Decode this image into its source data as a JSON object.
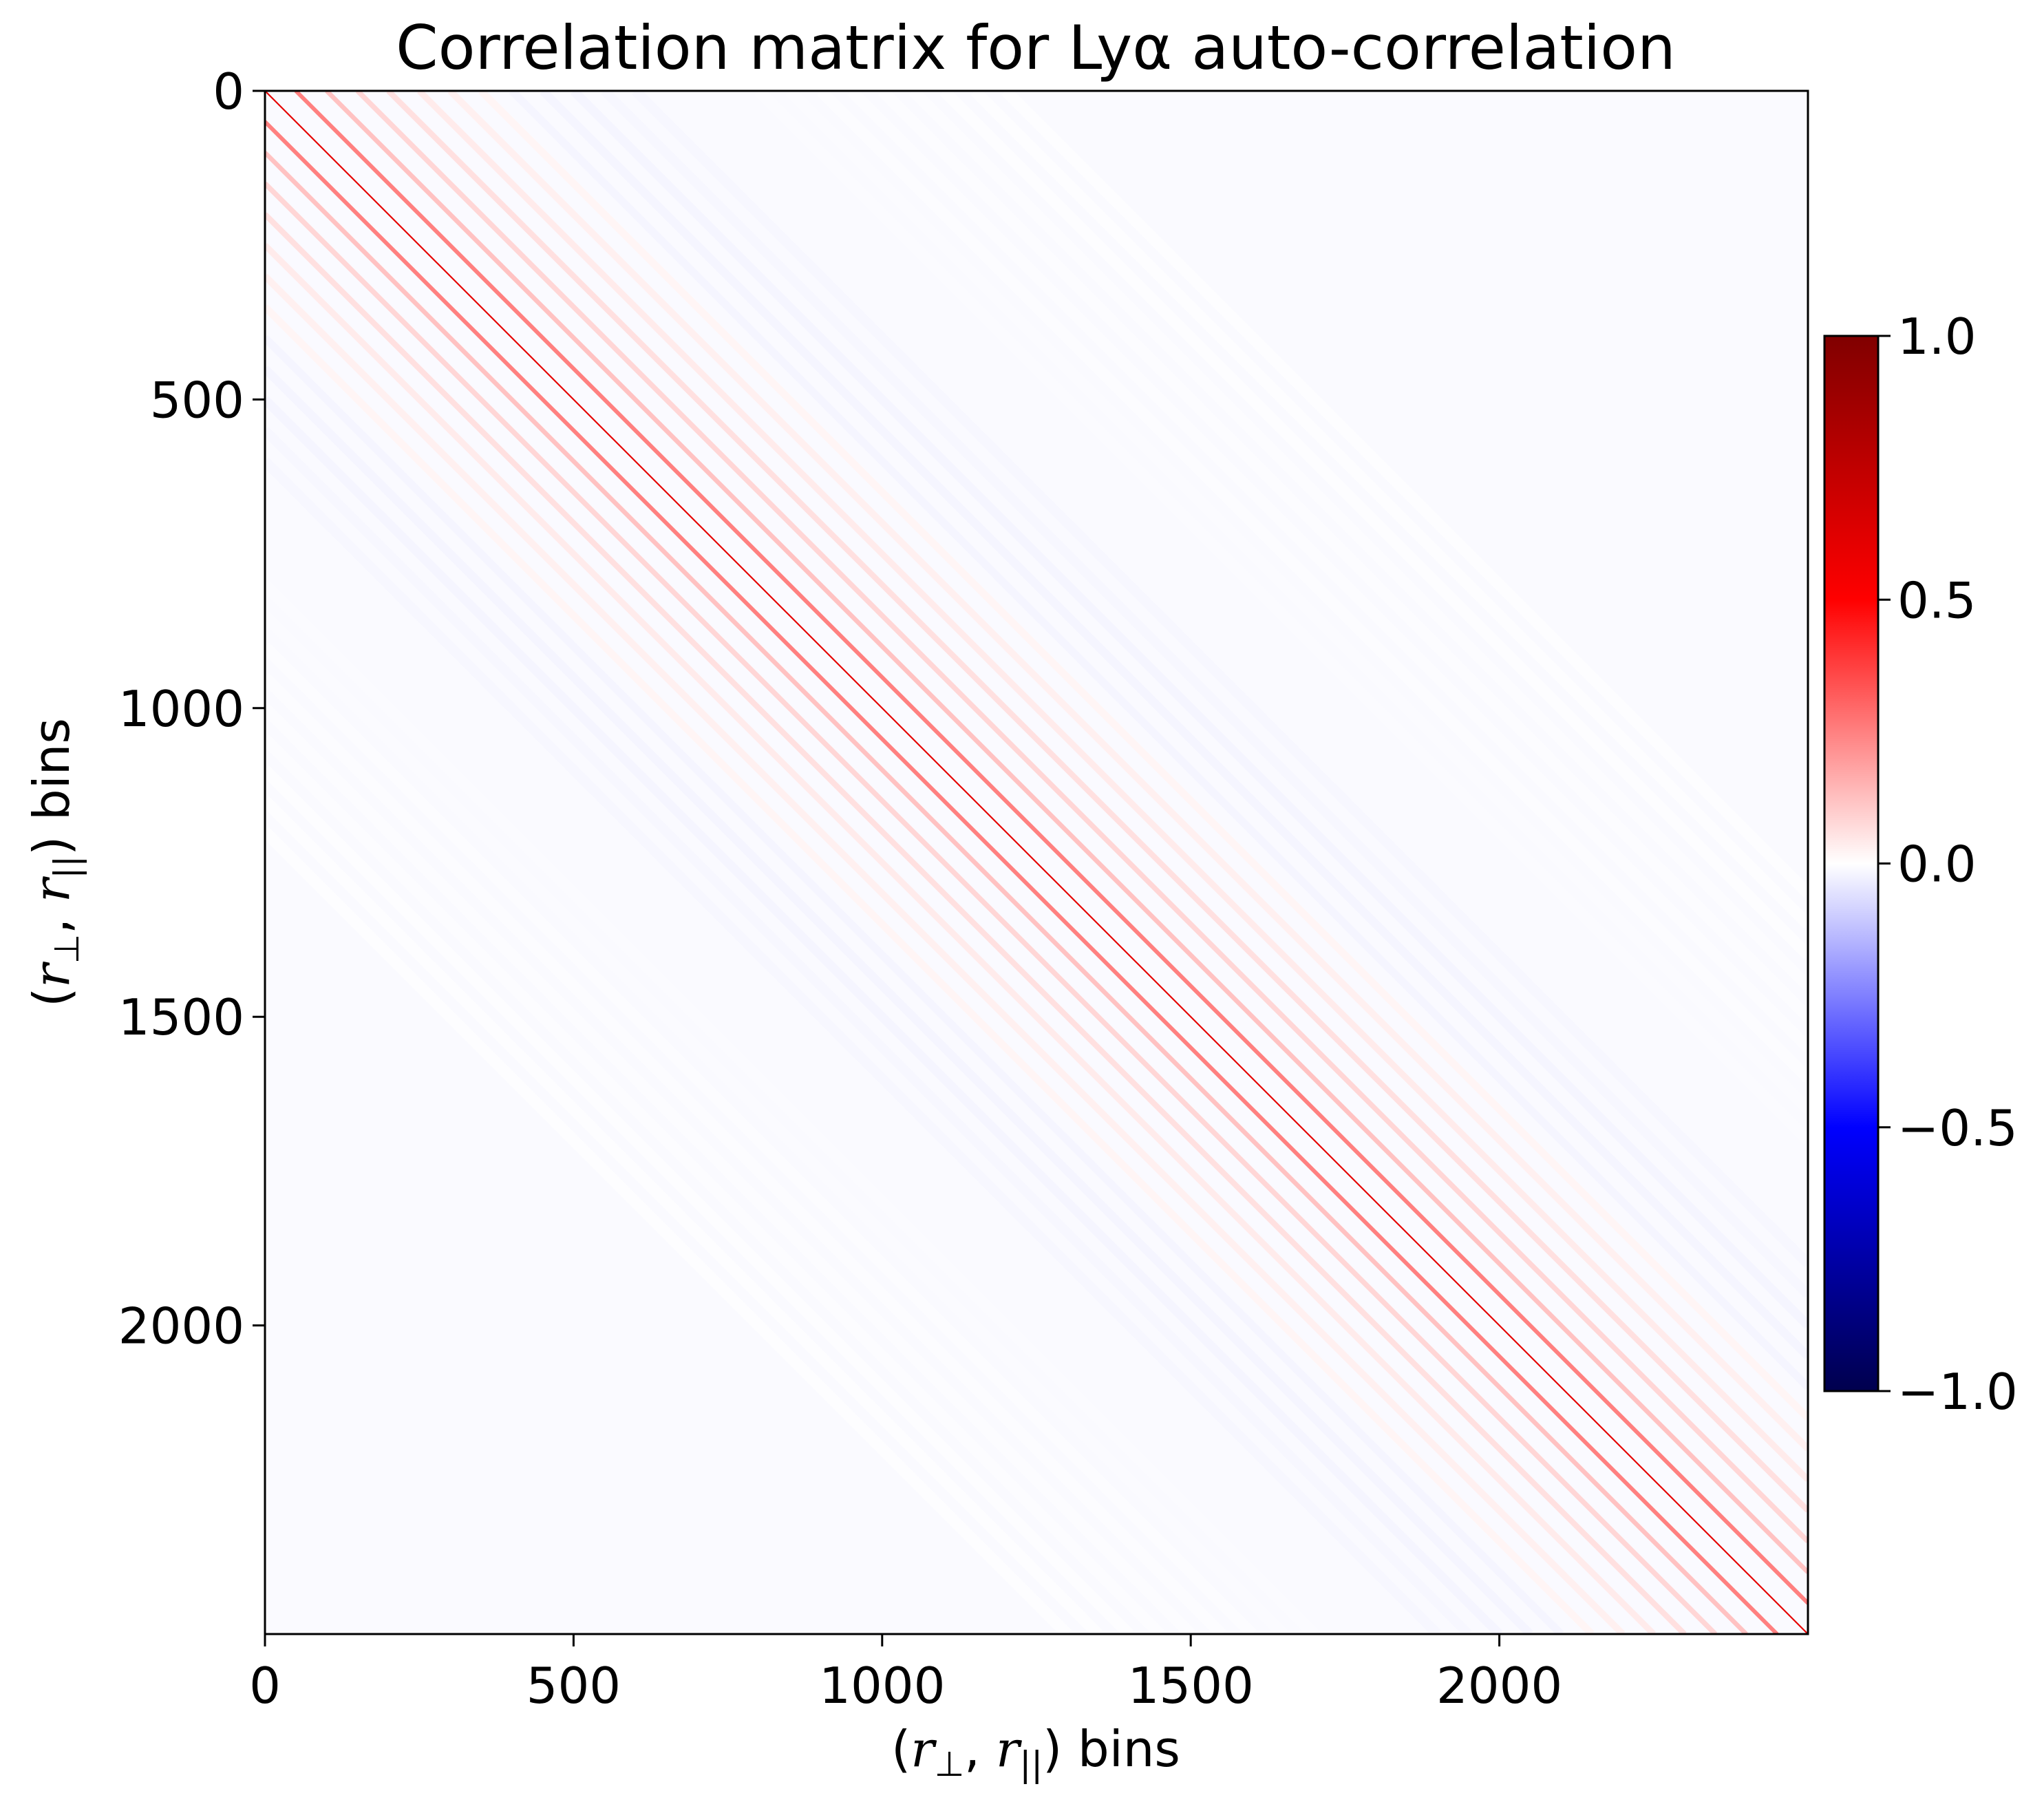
{
  "chart_data": {
    "type": "heatmap",
    "title": "Correlation matrix for Lyα auto-correlation",
    "xlabel": "(r⊥, r||) bins",
    "ylabel": "(r⊥, r||) bins",
    "matrix_size": 2500,
    "xlim": [
      0,
      2500
    ],
    "ylim": [
      2500,
      0
    ],
    "x_ticks": [
      0,
      500,
      1000,
      1500,
      2000
    ],
    "x_tick_labels": [
      "0",
      "500",
      "1000",
      "1500",
      "2000"
    ],
    "y_ticks": [
      0,
      500,
      1000,
      1500,
      2000
    ],
    "y_tick_labels": [
      "0",
      "500",
      "1000",
      "1500",
      "2000"
    ],
    "colormap": "seismic",
    "colormap_stops": [
      {
        "value": -1.0,
        "color": "#00004d"
      },
      {
        "value": -0.5,
        "color": "#0000ff"
      },
      {
        "value": 0.0,
        "color": "#ffffff"
      },
      {
        "value": 0.5,
        "color": "#ff0000"
      },
      {
        "value": 1.0,
        "color": "#800000"
      }
    ],
    "colorbar": {
      "min": -1.0,
      "max": 1.0,
      "ticks": [
        1.0,
        0.5,
        0.0,
        -0.5,
        -1.0
      ],
      "tick_labels": [
        "1.0",
        "0.5",
        "0.0",
        "−0.5",
        "−1.0"
      ]
    },
    "diagonal_bands": [
      {
        "offset": 0,
        "value": 0.6
      },
      {
        "offset": 50,
        "value": 0.25
      },
      {
        "offset": -50,
        "value": 0.25
      },
      {
        "offset": 100,
        "value": 0.12
      },
      {
        "offset": -100,
        "value": 0.12
      },
      {
        "offset": 150,
        "value": 0.08
      },
      {
        "offset": -150,
        "value": 0.08
      },
      {
        "offset": 200,
        "value": 0.06
      },
      {
        "offset": -200,
        "value": 0.06
      },
      {
        "offset": 250,
        "value": 0.04
      },
      {
        "offset": -250,
        "value": 0.04
      },
      {
        "offset": 300,
        "value": 0.03
      },
      {
        "offset": -300,
        "value": 0.03
      },
      {
        "offset": 350,
        "value": 0.02
      },
      {
        "offset": -350,
        "value": 0.02
      },
      {
        "offset": 400,
        "value": -0.02
      },
      {
        "offset": -400,
        "value": -0.02
      },
      {
        "offset": 450,
        "value": -0.02
      },
      {
        "offset": -450,
        "value": -0.02
      },
      {
        "offset": 500,
        "value": -0.02
      },
      {
        "offset": -500,
        "value": -0.02
      },
      {
        "offset": 550,
        "value": -0.015
      },
      {
        "offset": -550,
        "value": -0.015
      },
      {
        "offset": 600,
        "value": -0.015
      },
      {
        "offset": -600,
        "value": -0.015
      },
      {
        "offset": 650,
        "value": -0.01
      },
      {
        "offset": -650,
        "value": -0.01
      },
      {
        "offset": 700,
        "value": -0.01
      },
      {
        "offset": -700,
        "value": -0.01
      },
      {
        "offset": 750,
        "value": -0.01
      },
      {
        "offset": -750,
        "value": -0.01
      },
      {
        "offset": 800,
        "value": -0.008
      },
      {
        "offset": -800,
        "value": -0.008
      },
      {
        "offset": 850,
        "value": -0.008
      },
      {
        "offset": -850,
        "value": -0.008
      },
      {
        "offset": 900,
        "value": -0.006
      },
      {
        "offset": -900,
        "value": -0.006
      },
      {
        "offset": 950,
        "value": -0.006
      },
      {
        "offset": -950,
        "value": -0.006
      },
      {
        "offset": 1000,
        "value": -0.005
      },
      {
        "offset": -1000,
        "value": -0.005
      },
      {
        "offset": 1050,
        "value": -0.005
      },
      {
        "offset": -1050,
        "value": -0.005
      },
      {
        "offset": 1100,
        "value": -0.004
      },
      {
        "offset": -1100,
        "value": -0.004
      },
      {
        "offset": 1150,
        "value": -0.004
      },
      {
        "offset": -1150,
        "value": -0.004
      },
      {
        "offset": 1200,
        "value": -0.003
      },
      {
        "offset": -1200,
        "value": -0.003
      }
    ],
    "background_value": -0.01
  }
}
